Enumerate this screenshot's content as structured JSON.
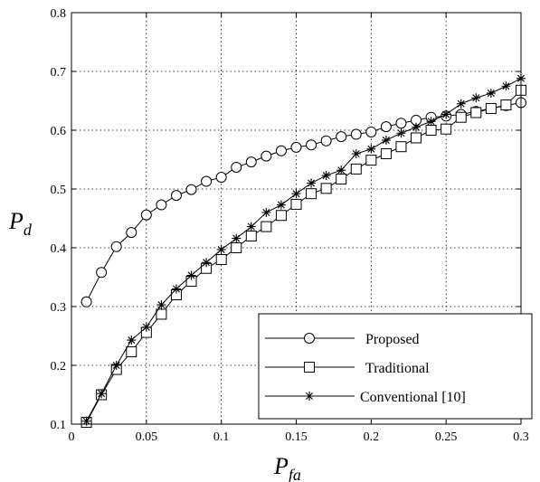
{
  "chart_data": {
    "type": "line",
    "xlabel": {
      "main": "P",
      "sub": "fa"
    },
    "ylabel": {
      "main": "P",
      "sub": "d"
    },
    "xlim": [
      0,
      0.3
    ],
    "ylim": [
      0.1,
      0.8
    ],
    "xticks": [
      "0",
      "0.05",
      "0.1",
      "0.15",
      "0.2",
      "0.25",
      "0.3"
    ],
    "yticks": [
      "0.1",
      "0.2",
      "0.3",
      "0.4",
      "0.5",
      "0.6",
      "0.7",
      "0.8"
    ],
    "grid": true,
    "legend": "bottom-right",
    "x": [
      0.01,
      0.02,
      0.03,
      0.04,
      0.05,
      0.06,
      0.07,
      0.08,
      0.09,
      0.1,
      0.11,
      0.12,
      0.13,
      0.14,
      0.15,
      0.16,
      0.17,
      0.18,
      0.19,
      0.2,
      0.21,
      0.22,
      0.23,
      0.24,
      0.25,
      0.26,
      0.27,
      0.28,
      0.29,
      0.3
    ],
    "series": [
      {
        "name": "Proposed",
        "marker": "circle",
        "values": [
          0.308,
          0.358,
          0.402,
          0.426,
          0.456,
          0.473,
          0.489,
          0.499,
          0.513,
          0.52,
          0.537,
          0.546,
          0.556,
          0.565,
          0.571,
          0.575,
          0.582,
          0.589,
          0.593,
          0.597,
          0.606,
          0.612,
          0.617,
          0.622,
          0.624,
          0.627,
          0.632,
          0.637,
          0.642,
          0.647
        ]
      },
      {
        "name": "Traditional",
        "marker": "square",
        "values": [
          0.103,
          0.15,
          0.193,
          0.223,
          0.256,
          0.287,
          0.32,
          0.343,
          0.365,
          0.38,
          0.4,
          0.42,
          0.436,
          0.455,
          0.474,
          0.492,
          0.501,
          0.517,
          0.534,
          0.549,
          0.56,
          0.572,
          0.587,
          0.6,
          0.602,
          0.622,
          0.63,
          0.637,
          0.643,
          0.668
        ]
      },
      {
        "name": "Conventional [10]",
        "marker": "star",
        "values": [
          0.105,
          0.152,
          0.2,
          0.243,
          0.265,
          0.303,
          0.33,
          0.353,
          0.375,
          0.397,
          0.416,
          0.436,
          0.46,
          0.473,
          0.492,
          0.51,
          0.523,
          0.532,
          0.56,
          0.568,
          0.583,
          0.595,
          0.605,
          0.615,
          0.627,
          0.645,
          0.655,
          0.663,
          0.675,
          0.688
        ]
      }
    ]
  }
}
